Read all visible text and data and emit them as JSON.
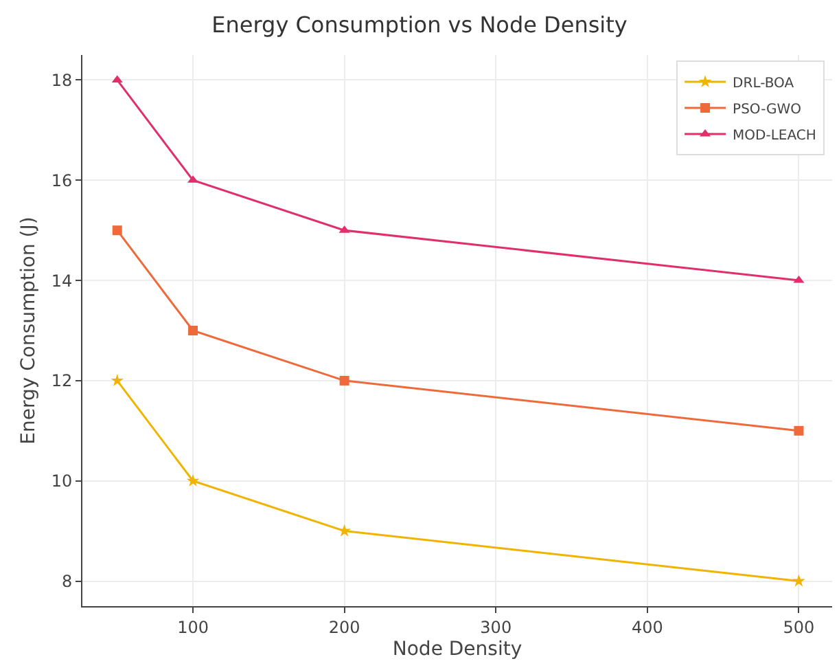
{
  "chart_data": {
    "type": "line",
    "title": "Energy Consumption vs Node Density",
    "xlabel": "Node Density",
    "ylabel": "Energy Consumption (J)",
    "x": [
      50,
      100,
      200,
      500
    ],
    "series": [
      {
        "name": "DRL-BOA",
        "color": "#f0b400",
        "values": [
          12,
          10,
          9,
          8
        ],
        "marker": "star"
      },
      {
        "name": "PSO-GWO",
        "color": "#ee6a3a",
        "values": [
          15,
          13,
          12,
          11
        ],
        "marker": "square"
      },
      {
        "name": "MOD-LEACH",
        "color": "#e0306a",
        "values": [
          18,
          16,
          15,
          14
        ],
        "marker": "triangle"
      }
    ],
    "xlim": [
      27,
      522
    ],
    "xticks": [
      100,
      200,
      300,
      400,
      500
    ],
    "ylim": [
      7.5,
      18.5
    ],
    "yticks": [
      8,
      10,
      12,
      14,
      16,
      18
    ],
    "grid": true,
    "legend": "top right",
    "line_style": "solid"
  }
}
